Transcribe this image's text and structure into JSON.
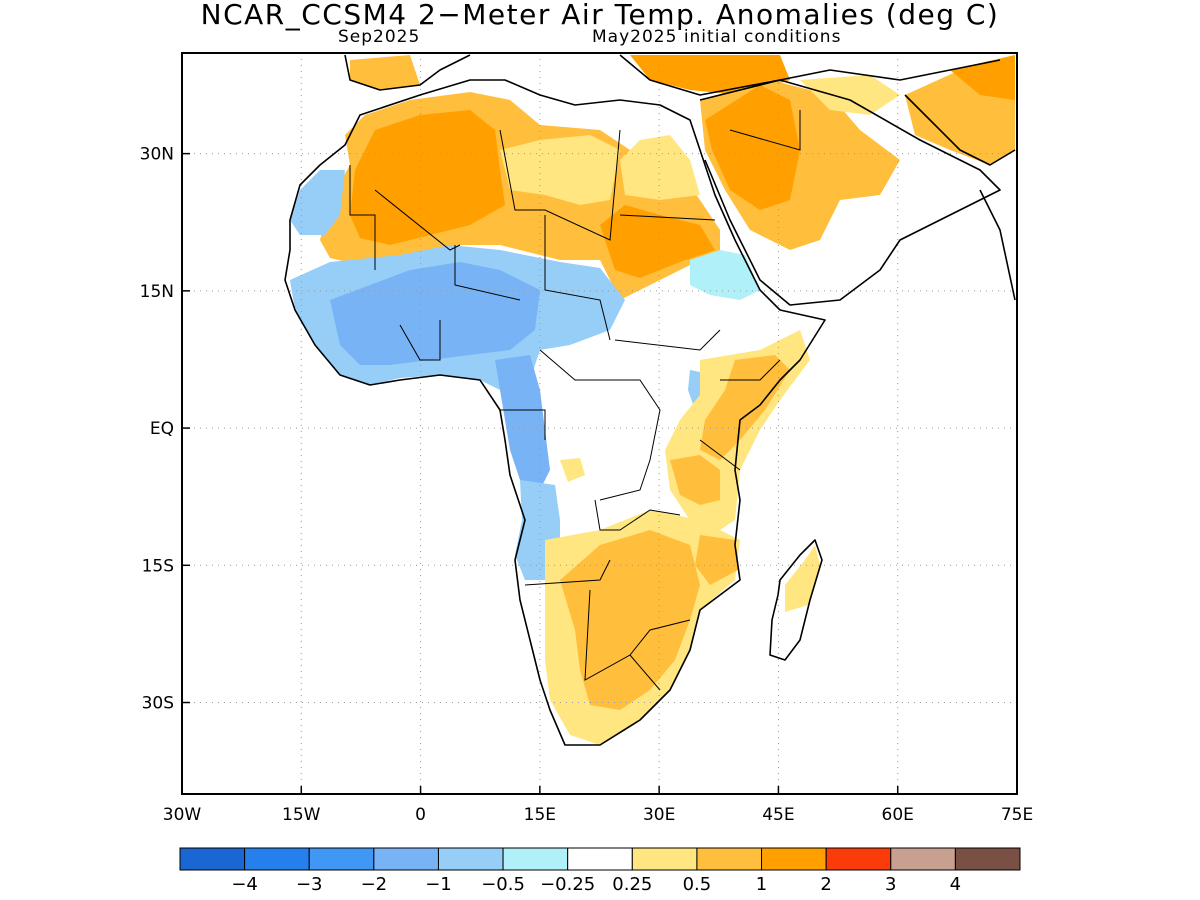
{
  "title": "NCAR_CCSM4 2−Meter Air Temp. Anomalies (deg C)",
  "subtitle_left": "Sep2025",
  "subtitle_right": "May2025 initial conditions",
  "map": {
    "lon_range": [
      -30,
      75
    ],
    "lat_range": [
      -40,
      41
    ],
    "x_ticks": [
      {
        "value": -30,
        "label": "30W"
      },
      {
        "value": -15,
        "label": "15W"
      },
      {
        "value": 0,
        "label": "0"
      },
      {
        "value": 15,
        "label": "15E"
      },
      {
        "value": 30,
        "label": "30E"
      },
      {
        "value": 45,
        "label": "45E"
      },
      {
        "value": 60,
        "label": "60E"
      },
      {
        "value": 75,
        "label": "75E"
      }
    ],
    "y_ticks": [
      {
        "value": 30,
        "label": "30N"
      },
      {
        "value": 15,
        "label": "15N"
      },
      {
        "value": 0,
        "label": "EQ"
      },
      {
        "value": -15,
        "label": "15S"
      },
      {
        "value": -30,
        "label": "30S"
      }
    ],
    "grid": "dotted"
  },
  "colorbar": {
    "colors": [
      "#1a66d2",
      "#2680ec",
      "#4197f4",
      "#78b4f5",
      "#96cef8",
      "#b0f0f8",
      "#ffffff",
      "#ffe680",
      "#ffbe3c",
      "#ffa000",
      "#fa3c0a",
      "#c8a090",
      "#7a5045"
    ],
    "labels": [
      "−4",
      "−3",
      "−2",
      "−1",
      "−0.5",
      "−0.25",
      "0.25",
      "0.5",
      "1",
      "2",
      "3",
      "4"
    ]
  }
}
